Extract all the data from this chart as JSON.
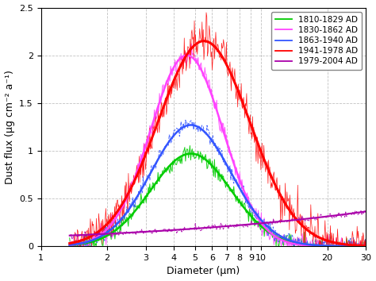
{
  "xlabel": "Diameter (μm)",
  "ylabel": "Dust flux (μg cm⁻² a⁻¹)",
  "xlim": [
    1,
    30
  ],
  "ylim": [
    0,
    2.5
  ],
  "xticks": [
    1,
    2,
    3,
    4,
    5,
    6,
    7,
    8,
    9,
    10,
    20,
    30
  ],
  "yticks": [
    0,
    0.5,
    1.0,
    1.5,
    2.0,
    2.5
  ],
  "series": [
    {
      "label": "1810-1829 AD",
      "color": "#00cc00",
      "peak": 0.97,
      "mode": 4.8,
      "sigma": 0.42,
      "noise_scale": 0.045,
      "noise_density": 400,
      "dashed": false,
      "smooth_lw": 1.8,
      "thin_lw": 0.7,
      "x_start": 1.35,
      "x_end": 30,
      "power_law": false
    },
    {
      "label": "1830-1862 AD",
      "color": "#ff44ff",
      "peak": 2.0,
      "mode": 4.6,
      "sigma": 0.38,
      "noise_scale": 0.055,
      "noise_density": 400,
      "dashed": false,
      "smooth_lw": 1.8,
      "thin_lw": 0.7,
      "x_start": 1.35,
      "x_end": 30,
      "power_law": false
    },
    {
      "label": "1863-1940 AD",
      "color": "#3355ff",
      "peak": 1.27,
      "mode": 4.8,
      "sigma": 0.42,
      "noise_scale": 0.04,
      "noise_density": 400,
      "dashed": true,
      "smooth_lw": 1.8,
      "thin_lw": 0.7,
      "x_start": 1.35,
      "x_end": 30,
      "power_law": false
    },
    {
      "label": "1941-1978 AD",
      "color": "#ff0000",
      "peak": 2.15,
      "mode": 5.5,
      "sigma": 0.48,
      "noise_scale": 0.1,
      "noise_density": 500,
      "dashed": false,
      "smooth_lw": 2.2,
      "thin_lw": 0.5,
      "x_start": 1.35,
      "x_end": 30,
      "power_law": false
    },
    {
      "label": "1979-2004 AD",
      "color": "#aa00aa",
      "peak": 0.65,
      "mode": 30.0,
      "sigma": 1.2,
      "noise_scale": 0.015,
      "noise_density": 350,
      "dashed": true,
      "smooth_lw": 1.5,
      "thin_lw": 0.7,
      "x_start": 1.35,
      "x_end": 30,
      "power_law": true,
      "power_a": 0.1,
      "power_b": 0.38
    }
  ],
  "background_color": "#ffffff",
  "grid_color": "#999999",
  "legend_fontsize": 7.5,
  "axis_fontsize": 9,
  "tick_fontsize": 8
}
